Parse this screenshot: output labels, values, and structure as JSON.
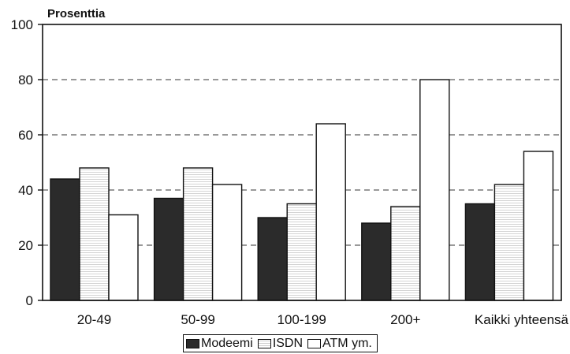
{
  "chart_data": {
    "type": "bar",
    "ylabel": "Prosenttia",
    "ylim": [
      0,
      100
    ],
    "yticks": [
      0,
      20,
      40,
      60,
      80,
      100
    ],
    "grid": "dashed horizontal at 20, 40, 60, 80",
    "categories": [
      "20-49",
      "50-99",
      "100-199",
      "200+",
      "Kaikki yhteensä"
    ],
    "series": [
      {
        "name": "Modeemi",
        "color": "#2b2b2b",
        "values": [
          44,
          37,
          30,
          28,
          35
        ]
      },
      {
        "name": "ISDN",
        "color": "#ffffff",
        "pattern": "light-stripes",
        "values": [
          48,
          48,
          35,
          34,
          42
        ]
      },
      {
        "name": "ATM ym.",
        "color": "#ffffff",
        "values": [
          31,
          42,
          64,
          80,
          54
        ]
      }
    ],
    "legend": "bottom-center"
  }
}
